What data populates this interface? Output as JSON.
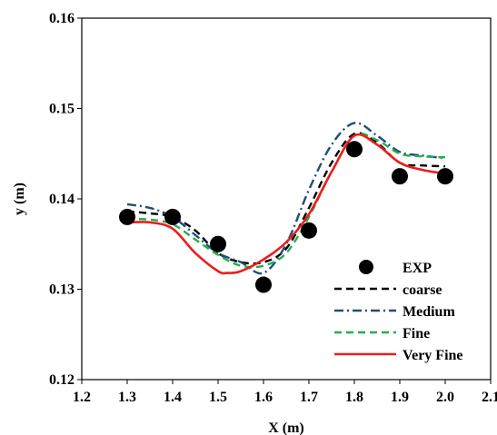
{
  "chart_data": {
    "type": "line",
    "title": "",
    "xlabel": "X (m)",
    "ylabel": "y (m)",
    "xlim": [
      1.2,
      2.1
    ],
    "ylim": [
      0.12,
      0.16
    ],
    "xticks": [
      1.2,
      1.3,
      1.4,
      1.5,
      1.6,
      1.7,
      1.8,
      1.9,
      2.0,
      2.1
    ],
    "xtick_labels": [
      "1.2",
      "1.3",
      "1.4",
      "1.5",
      "1.6",
      "1.7",
      "1.8",
      "1.9",
      "2.0",
      "2.1"
    ],
    "yticks": [
      0.12,
      0.13,
      0.14,
      0.15,
      0.16
    ],
    "ytick_labels": [
      "0.12",
      "0.13",
      "0.14",
      "0.15",
      "0.16"
    ],
    "grid": false,
    "legend_position": "bottom-right",
    "series": [
      {
        "name": "EXP",
        "kind": "scatter",
        "color": "#000000",
        "x": [
          1.3,
          1.4,
          1.5,
          1.6,
          1.7,
          1.8,
          1.9,
          2.0
        ],
        "y": [
          0.138,
          0.138,
          0.135,
          0.1305,
          0.1365,
          0.1455,
          0.1425,
          0.1425
        ]
      },
      {
        "name": "coarse",
        "kind": "line",
        "style": "dash",
        "color": "#000000",
        "x": [
          1.3,
          1.35,
          1.4,
          1.45,
          1.5,
          1.55,
          1.6,
          1.65,
          1.7,
          1.75,
          1.8,
          1.85,
          1.9,
          1.95,
          2.0
        ],
        "y": [
          0.1386,
          0.1384,
          0.138,
          0.1365,
          0.134,
          0.133,
          0.133,
          0.1345,
          0.139,
          0.144,
          0.1472,
          0.1462,
          0.144,
          0.1437,
          0.1436
        ]
      },
      {
        "name": "Medium",
        "kind": "line",
        "style": "dashdot",
        "color": "#1f4e79",
        "x": [
          1.3,
          1.35,
          1.4,
          1.45,
          1.5,
          1.55,
          1.6,
          1.65,
          1.7,
          1.75,
          1.8,
          1.85,
          1.9,
          1.95,
          2.0
        ],
        "y": [
          0.1394,
          0.139,
          0.138,
          0.136,
          0.134,
          0.133,
          0.1318,
          0.135,
          0.141,
          0.146,
          0.1484,
          0.147,
          0.1452,
          0.1448,
          0.1445
        ]
      },
      {
        "name": "Fine",
        "kind": "line",
        "style": "dash",
        "color": "#22b04c",
        "x": [
          1.3,
          1.35,
          1.4,
          1.45,
          1.5,
          1.55,
          1.6,
          1.65,
          1.7,
          1.75,
          1.8,
          1.85,
          1.9,
          1.95,
          2.0
        ],
        "y": [
          0.1378,
          0.1377,
          0.1372,
          0.1355,
          0.1338,
          0.1326,
          0.1326,
          0.134,
          0.138,
          0.143,
          0.147,
          0.1465,
          0.145,
          0.1447,
          0.1446
        ]
      },
      {
        "name": "Very Fine",
        "kind": "line",
        "style": "solid",
        "color": "#ee1c1c",
        "x": [
          1.3,
          1.35,
          1.4,
          1.45,
          1.5,
          1.52,
          1.55,
          1.6,
          1.65,
          1.7,
          1.75,
          1.8,
          1.85,
          1.9,
          1.95,
          2.0
        ],
        "y": [
          0.1374,
          0.1374,
          0.1367,
          0.134,
          0.132,
          0.1318,
          0.132,
          0.1333,
          0.1352,
          0.1383,
          0.143,
          0.147,
          0.146,
          0.144,
          0.1432,
          0.1428
        ]
      }
    ]
  }
}
